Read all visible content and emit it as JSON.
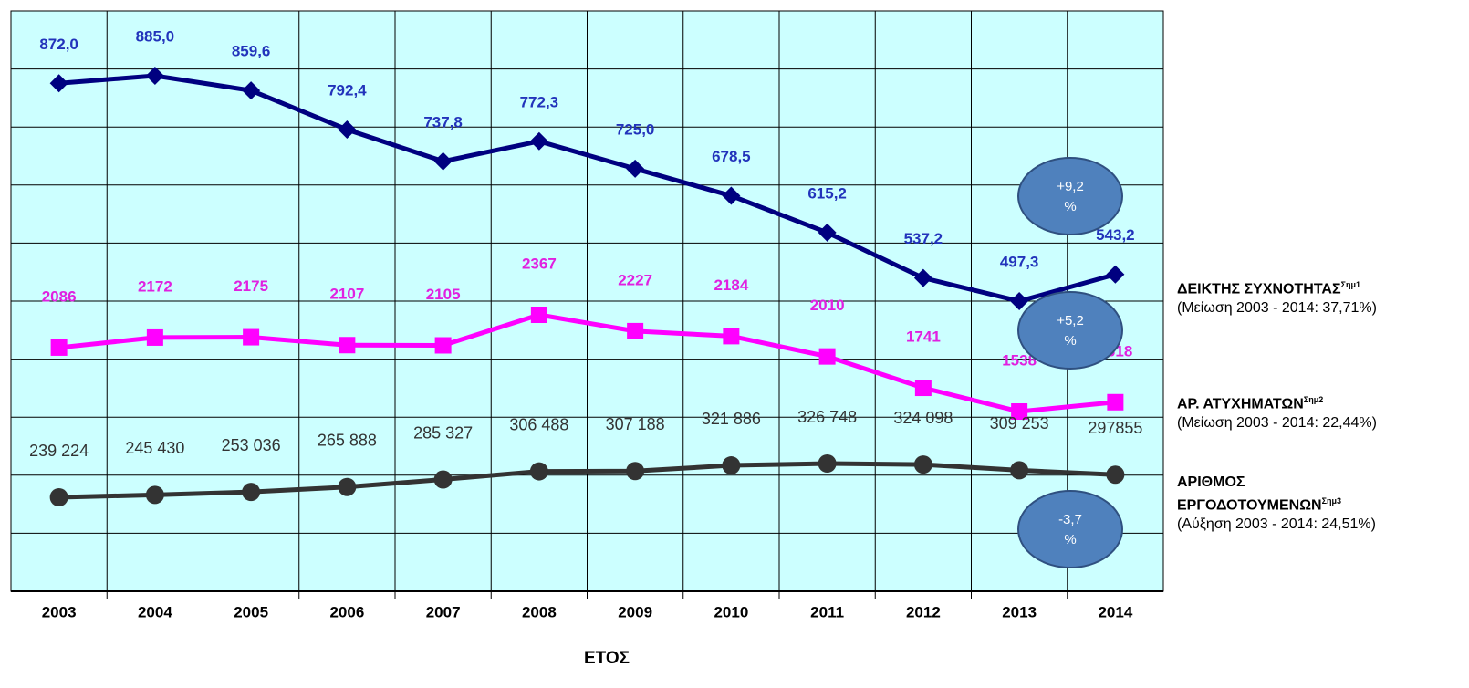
{
  "chart_data": {
    "type": "line",
    "categories": [
      "2003",
      "2004",
      "2005",
      "2006",
      "2007",
      "2008",
      "2009",
      "2010",
      "2011",
      "2012",
      "2013",
      "2014"
    ],
    "x_label": "ΕΤΟΣ",
    "series": [
      {
        "name": "ΔΕΙΚΤΗΣ ΣΥΧΝΟΤΗΤΑΣ",
        "footnote": "Σημ1",
        "change": "(Μείωση 2003 - 2014: 37,71%)",
        "color": "#000080",
        "label_color": "#2233bb",
        "marker": "diamond",
        "values": [
          872.0,
          885.0,
          859.6,
          792.4,
          737.8,
          772.3,
          725.0,
          678.5,
          615.2,
          537.2,
          497.3,
          543.2
        ],
        "value_labels": [
          "872,0",
          "885,0",
          "859,6",
          "792,4",
          "737,8",
          "772,3",
          "725,0",
          "678,5",
          "615,2",
          "537,2",
          "497,3",
          "543,2"
        ]
      },
      {
        "name": "ΑΡ. ΑΤΥΧΗΜΑΤΩΝ",
        "footnote": "Σημ2",
        "change": "(Μείωση 2003 - 2014: 22,44%)",
        "color": "#ff00ff",
        "label_color": "#e020e0",
        "marker": "square",
        "values": [
          2086,
          2172,
          2175,
          2107,
          2105,
          2367,
          2227,
          2184,
          2010,
          1741,
          1538,
          1618
        ]
      },
      {
        "name": "ΑΡΙΘΜΟΣ ΕΡΓΟΔΟΤΟΥΜΕΝΩΝ",
        "footnote": "Σημ3",
        "change": "(Αύξηση 2003 - 2014: 24,51%)",
        "color": "#333333",
        "label_color": "#333333",
        "marker": "circle",
        "values": [
          239224,
          245430,
          253036,
          265888,
          285327,
          306488,
          307188,
          321886,
          326748,
          324098,
          309253,
          297855
        ],
        "value_labels": [
          "239 224",
          "245 430",
          "253 036",
          "265 888",
          "285 327",
          "306 488",
          "307 188",
          "321 886",
          "326 748",
          "324 098",
          "309 253",
          "297855"
        ]
      }
    ],
    "annotations": [
      [
        "+9,2",
        "%"
      ],
      [
        "+5,2",
        "%"
      ],
      [
        "-3,7",
        "%"
      ]
    ]
  }
}
